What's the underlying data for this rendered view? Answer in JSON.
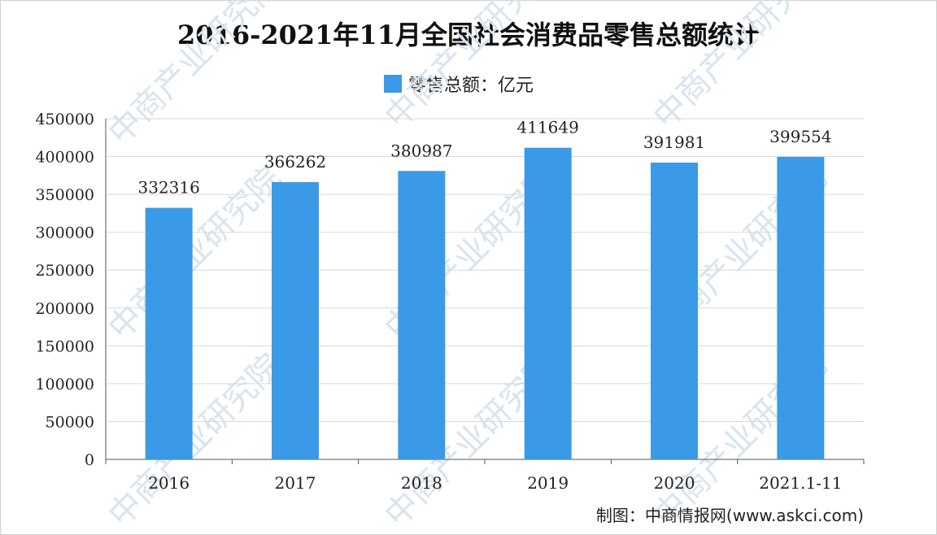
{
  "watermark": "中商产业研究院",
  "credit": "制图：中商情报网(www.askci.com)",
  "colors": {
    "bar": "#3a9ae8",
    "grid": "#d9d9d9",
    "axis": "#555555"
  },
  "chart_data": {
    "type": "bar",
    "title": "2016-2021年11月全国社会消费品零售总额统计",
    "categories": [
      "2016",
      "2017",
      "2018",
      "2019",
      "2020",
      "2021.1-11"
    ],
    "series": [
      {
        "name": "零售总额：亿元",
        "values": [
          332316,
          366262,
          380987,
          411649,
          391981,
          399554
        ]
      }
    ],
    "ylim": [
      0,
      450000
    ],
    "yticks": [
      0,
      50000,
      100000,
      150000,
      200000,
      250000,
      300000,
      350000,
      400000,
      450000
    ],
    "grid": true,
    "legend_position": "top"
  }
}
